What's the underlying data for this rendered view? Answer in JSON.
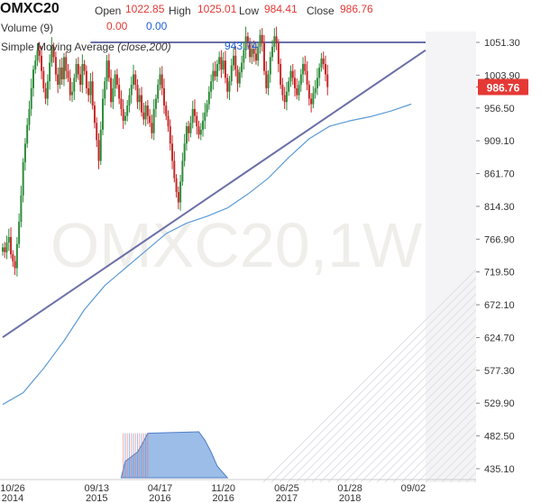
{
  "header": {
    "symbol": "OMXC20",
    "open_label": "Open",
    "open_value": "1022.85",
    "high_label": "High",
    "high_value": "1025.01",
    "low_label": "Low",
    "low_value": "984.41",
    "close_label": "Close",
    "close_value": "986.76",
    "volume_label": "Volume (9)",
    "volume_value1": "0.00",
    "volume_value2": "0.00",
    "sma_label": "Simple Moving Average",
    "sma_params": "(close,200)",
    "sma_value": "943.74"
  },
  "chart_data": {
    "type": "candlestick",
    "watermark": "OMXC20,1W",
    "y_ticks": [
      "1051.30",
      "1003.90",
      "956.50",
      "909.10",
      "861.70",
      "814.30",
      "766.90",
      "719.50",
      "672.10",
      "624.70",
      "577.30",
      "529.90",
      "482.50",
      "435.10"
    ],
    "y_range": [
      427,
      1075
    ],
    "x_labels": [
      {
        "date": "10/26",
        "year": "2014",
        "t": 0
      },
      {
        "date": "09/13",
        "year": "2015",
        "t": 46
      },
      {
        "date": "04/17",
        "year": "2016",
        "t": 77
      },
      {
        "date": "11/20",
        "year": "2016",
        "t": 108
      },
      {
        "date": "06/25",
        "year": "2017",
        "t": 139
      },
      {
        "date": "01/28",
        "year": "2018",
        "t": 170
      },
      {
        "date": "09/02",
        "year": "",
        "t": 201
      }
    ],
    "last_close_badge": "986.76",
    "last_close": 986.76,
    "colors": {
      "up": "#2e8b3a",
      "down": "#c62828",
      "sma": "#5b9bd5",
      "trendline": "#6b6fa8",
      "badge": "#e53935",
      "volume": "#7aa7e0"
    },
    "series_close": [
      755,
      748,
      762,
      770,
      745,
      735,
      725,
      760,
      792,
      830,
      878,
      905,
      932,
      955,
      985,
      1012,
      1025,
      1040,
      1032,
      1010,
      985,
      970,
      995,
      1022,
      1045,
      1030,
      1005,
      990,
      1015,
      998,
      1030,
      1010,
      1000,
      975,
      980,
      1000,
      1020,
      1005,
      990,
      1020,
      1010,
      985,
      975,
      995,
      960,
      935,
      910,
      880,
      925,
      970,
      995,
      1025,
      1000,
      965,
      985,
      1005,
      990,
      970,
      955,
      938,
      945,
      960,
      975,
      990,
      1005,
      990,
      965,
      975,
      950,
      940,
      960,
      945,
      935,
      920,
      955,
      970,
      990,
      1005,
      985,
      960,
      945,
      930,
      905,
      880,
      855,
      835,
      820,
      850,
      880,
      905,
      930,
      920,
      935,
      955,
      945,
      930,
      918,
      925,
      938,
      950,
      962,
      980,
      995,
      1010,
      1002,
      1020,
      1030,
      1012,
      1025,
      1000,
      980,
      995,
      1018,
      1032,
      1012,
      992,
      1008,
      1022,
      1040,
      1060,
      1050,
      1030,
      1042,
      1035,
      1025,
      1045,
      1062,
      1050,
      1010,
      985,
      1005,
      1030,
      1045,
      1060,
      1050,
      1020,
      990,
      975,
      965,
      980,
      995,
      1010,
      1000,
      985,
      975,
      990,
      1005,
      1020,
      1010,
      990,
      970,
      962,
      978,
      985,
      1000,
      1015,
      1028,
      1020,
      1005,
      986.76
    ],
    "sma200": [
      [
        0,
        528
      ],
      [
        10,
        545
      ],
      [
        20,
        580
      ],
      [
        30,
        620
      ],
      [
        40,
        665
      ],
      [
        50,
        700
      ],
      [
        60,
        725
      ],
      [
        70,
        750
      ],
      [
        80,
        775
      ],
      [
        90,
        790
      ],
      [
        100,
        800
      ],
      [
        110,
        812
      ],
      [
        120,
        832
      ],
      [
        130,
        855
      ],
      [
        140,
        885
      ],
      [
        150,
        912
      ],
      [
        160,
        930
      ],
      [
        170,
        938
      ],
      [
        180,
        944
      ],
      [
        190,
        952
      ],
      [
        200,
        962
      ]
    ],
    "trendlines": [
      [
        [
          0,
          625
        ],
        [
          207,
          1040
        ]
      ],
      [
        [
          43,
          1051.3
        ],
        [
          207,
          1051.3
        ]
      ]
    ],
    "volume": {
      "label": "Volume",
      "shape": [
        [
          58,
          0
        ],
        [
          60,
          0.35
        ],
        [
          63,
          0.45
        ],
        [
          66,
          0.55
        ],
        [
          68,
          0.7
        ],
        [
          71,
          0.95
        ],
        [
          96,
          0.98
        ],
        [
          99,
          0.8
        ],
        [
          102,
          0.55
        ],
        [
          105,
          0.25
        ],
        [
          108,
          0.1
        ],
        [
          110,
          0
        ]
      ]
    }
  }
}
